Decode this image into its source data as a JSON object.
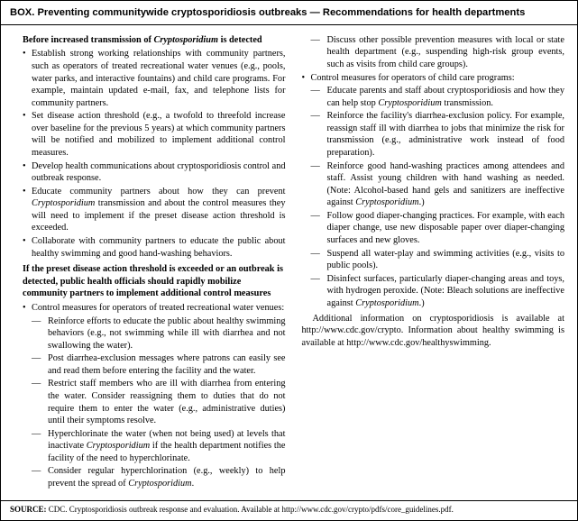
{
  "box": {
    "title": "BOX. Preventing communitywide cryptosporidiosis outbreaks — Recommendations for health departments",
    "head1_a": "Before increased transmission of ",
    "head1_b": "Cryptosporidium",
    "head1_c": " is detected",
    "b1_1": "Establish strong working relationships with community partners, such as operators of treated recreational water venues (e.g., pools, water parks, and interactive fountains) and child care programs. For example, maintain updated e-mail, fax, and telephone lists for community partners.",
    "b1_2": "Set disease action threshold (e.g., a twofold to threefold increase over baseline for the previous 5 years) at which community partners will be notified and mobilized to implement additional control measures.",
    "b1_3": "Develop health communications about cryptosporidiosis control and outbreak response.",
    "b1_4a": "Educate community partners about how they can prevent ",
    "b1_4b": "Cryptosporidium",
    "b1_4c": " transmission and about the control measures they will need to implement if the preset disease action threshold is exceeded.",
    "b1_5": "Collaborate with community partners to educate the public about healthy swimming and good hand-washing behaviors.",
    "head2": "If the preset disease action threshold is exceeded or an outbreak is detected, public health officials should rapidly mobilize community partners to implement additional control measures",
    "b2_1": "Control measures for operators of treated recreational water venues:",
    "s2_1_1": "Reinforce efforts to educate the public about healthy swimming behaviors (e.g., not swimming while ill with diarrhea and not swallowing the water).",
    "s2_1_2": "Post diarrhea-exclusion messages where patrons can easily see and read them before entering the facility and the water.",
    "s2_1_3": "Restrict staff members who are ill with diarrhea from entering the water. Consider reassigning them to duties that do not require them to enter the water (e.g., administrative duties) until their symptoms resolve.",
    "s2_1_4a": "Hyperchlorinate the water (when not being used) at levels that inactivate ",
    "s2_1_4b": "Cryptosporidium",
    "s2_1_4c": " if the health department notifies the facility of the need to hyperchlorinate.",
    "s2_1_5a": "Consider regular hyperchlorination (e.g., weekly) to help prevent the spread of ",
    "s2_1_5b": "Cryptosporidium",
    "s2_1_5c": ".",
    "s2_1_6": "Discuss other possible prevention measures with local or state health department (e.g., suspending high-risk group events, such as visits from child care groups).",
    "b2_2": "Control measures for operators of child care programs:",
    "s2_2_1a": "Educate parents and staff about cryptosporidiosis and how they can help stop ",
    "s2_2_1b": "Cryptosporidium",
    "s2_2_1c": " transmission.",
    "s2_2_2": "Reinforce the facility's diarrhea-exclusion policy. For example, reassign staff ill with diarrhea to jobs that minimize the risk for transmission (e.g., administrative work instead of food preparation).",
    "s2_2_3a": "Reinforce good hand-washing practices among attendees and staff. Assist young children with hand washing as needed. (Note: Alcohol-based hand gels and sanitizers are ineffective against ",
    "s2_2_3b": "Cryptosporidium",
    "s2_2_3c": ".)",
    "s2_2_4": "Follow good diaper-changing practices. For example, with each diaper change, use new disposable paper over diaper-changing surfaces and new gloves.",
    "s2_2_5": "Suspend all water-play and swimming activities (e.g., visits to public pools).",
    "s2_2_6a": "Disinfect surfaces, particularly diaper-changing areas and toys, with hydrogen peroxide. (Note: Bleach solutions are ineffective against ",
    "s2_2_6b": "Cryptosporidium",
    "s2_2_6c": ".)",
    "trail": "Additional information on cryptosporidiosis is available at http://www.cdc.gov/crypto. Information about healthy swimming is available at http://www.cdc.gov/healthyswimming.",
    "source_label": "SOURCE:",
    "source_text": " CDC. Cryptosporidiosis outbreak response and evaluation. Available at http://www.cdc.gov/crypto/pdfs/core_guidelines.pdf."
  }
}
